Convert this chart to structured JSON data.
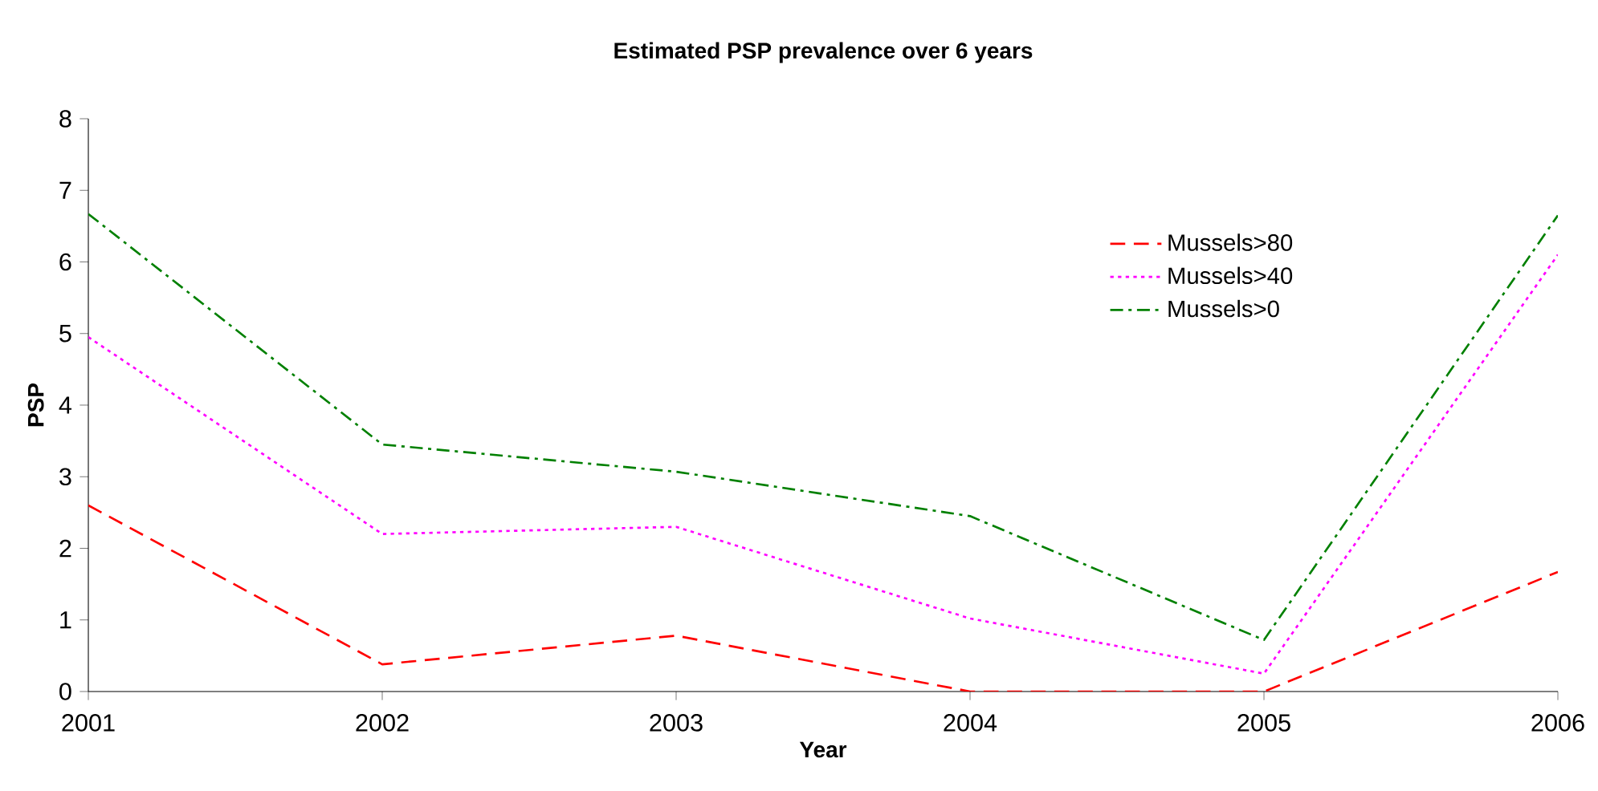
{
  "chart_data": {
    "type": "line",
    "title": "Estimated PSP prevalence over 6 years",
    "xlabel": "Year",
    "ylabel": "PSP",
    "x": [
      2001,
      2002,
      2003,
      2004,
      2005,
      2006
    ],
    "series": [
      {
        "name": "Mussels>80",
        "color": "#ff0000",
        "line_style": "dashed",
        "values": [
          2.6,
          0.38,
          0.78,
          0,
          0,
          1.67
        ]
      },
      {
        "name": "Mussels>40",
        "color": "#ff00ff",
        "line_style": "dotted",
        "values": [
          4.95,
          2.2,
          2.3,
          1.02,
          0.25,
          6.1
        ]
      },
      {
        "name": "Mussels>0",
        "color": "#008000",
        "line_style": "dashdot",
        "values": [
          6.67,
          3.45,
          3.07,
          2.45,
          0.72,
          6.65
        ]
      }
    ],
    "xlim": [
      2001,
      2006
    ],
    "xticks": [
      2001,
      2002,
      2003,
      2004,
      2005,
      2006
    ],
    "ylim": [
      0,
      8
    ],
    "yticks": [
      0,
      1,
      2,
      3,
      4,
      5,
      6,
      7,
      8
    ],
    "grid": false,
    "legend": "top right",
    "marker": "none"
  }
}
